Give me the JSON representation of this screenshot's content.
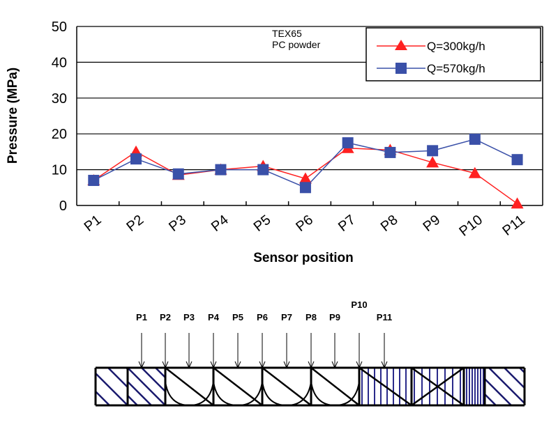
{
  "chart_data": {
    "type": "line",
    "title": "",
    "xlabel": "Sensor position",
    "ylabel": "Pressure (MPa)",
    "ylim": [
      0,
      50
    ],
    "yticks": [
      0,
      10,
      20,
      30,
      40,
      50
    ],
    "grid": true,
    "legend_position": "top-right",
    "annotation": [
      "TEX65",
      "PC powder"
    ],
    "categories": [
      "P1",
      "P2",
      "P3",
      "P4",
      "P5",
      "P6",
      "P7",
      "P8",
      "P9",
      "P10",
      "P11"
    ],
    "series": [
      {
        "name": "Q=300kg/h",
        "color": "#ff2020",
        "marker": "triangle",
        "values": [
          7,
          15,
          8.5,
          10,
          11,
          7.5,
          16,
          15.5,
          12,
          9,
          0.5
        ]
      },
      {
        "name": "Q=570kg/h",
        "color": "#3a50a8",
        "marker": "square",
        "values": [
          7,
          13,
          8.8,
          10,
          10,
          5,
          17.5,
          14.8,
          15.3,
          18.5,
          12.8
        ]
      }
    ]
  },
  "diagram": {
    "sensor_labels": [
      "P1",
      "P2",
      "P3",
      "P4",
      "P5",
      "P6",
      "P7",
      "P8",
      "P9",
      "P10",
      "P11"
    ]
  }
}
